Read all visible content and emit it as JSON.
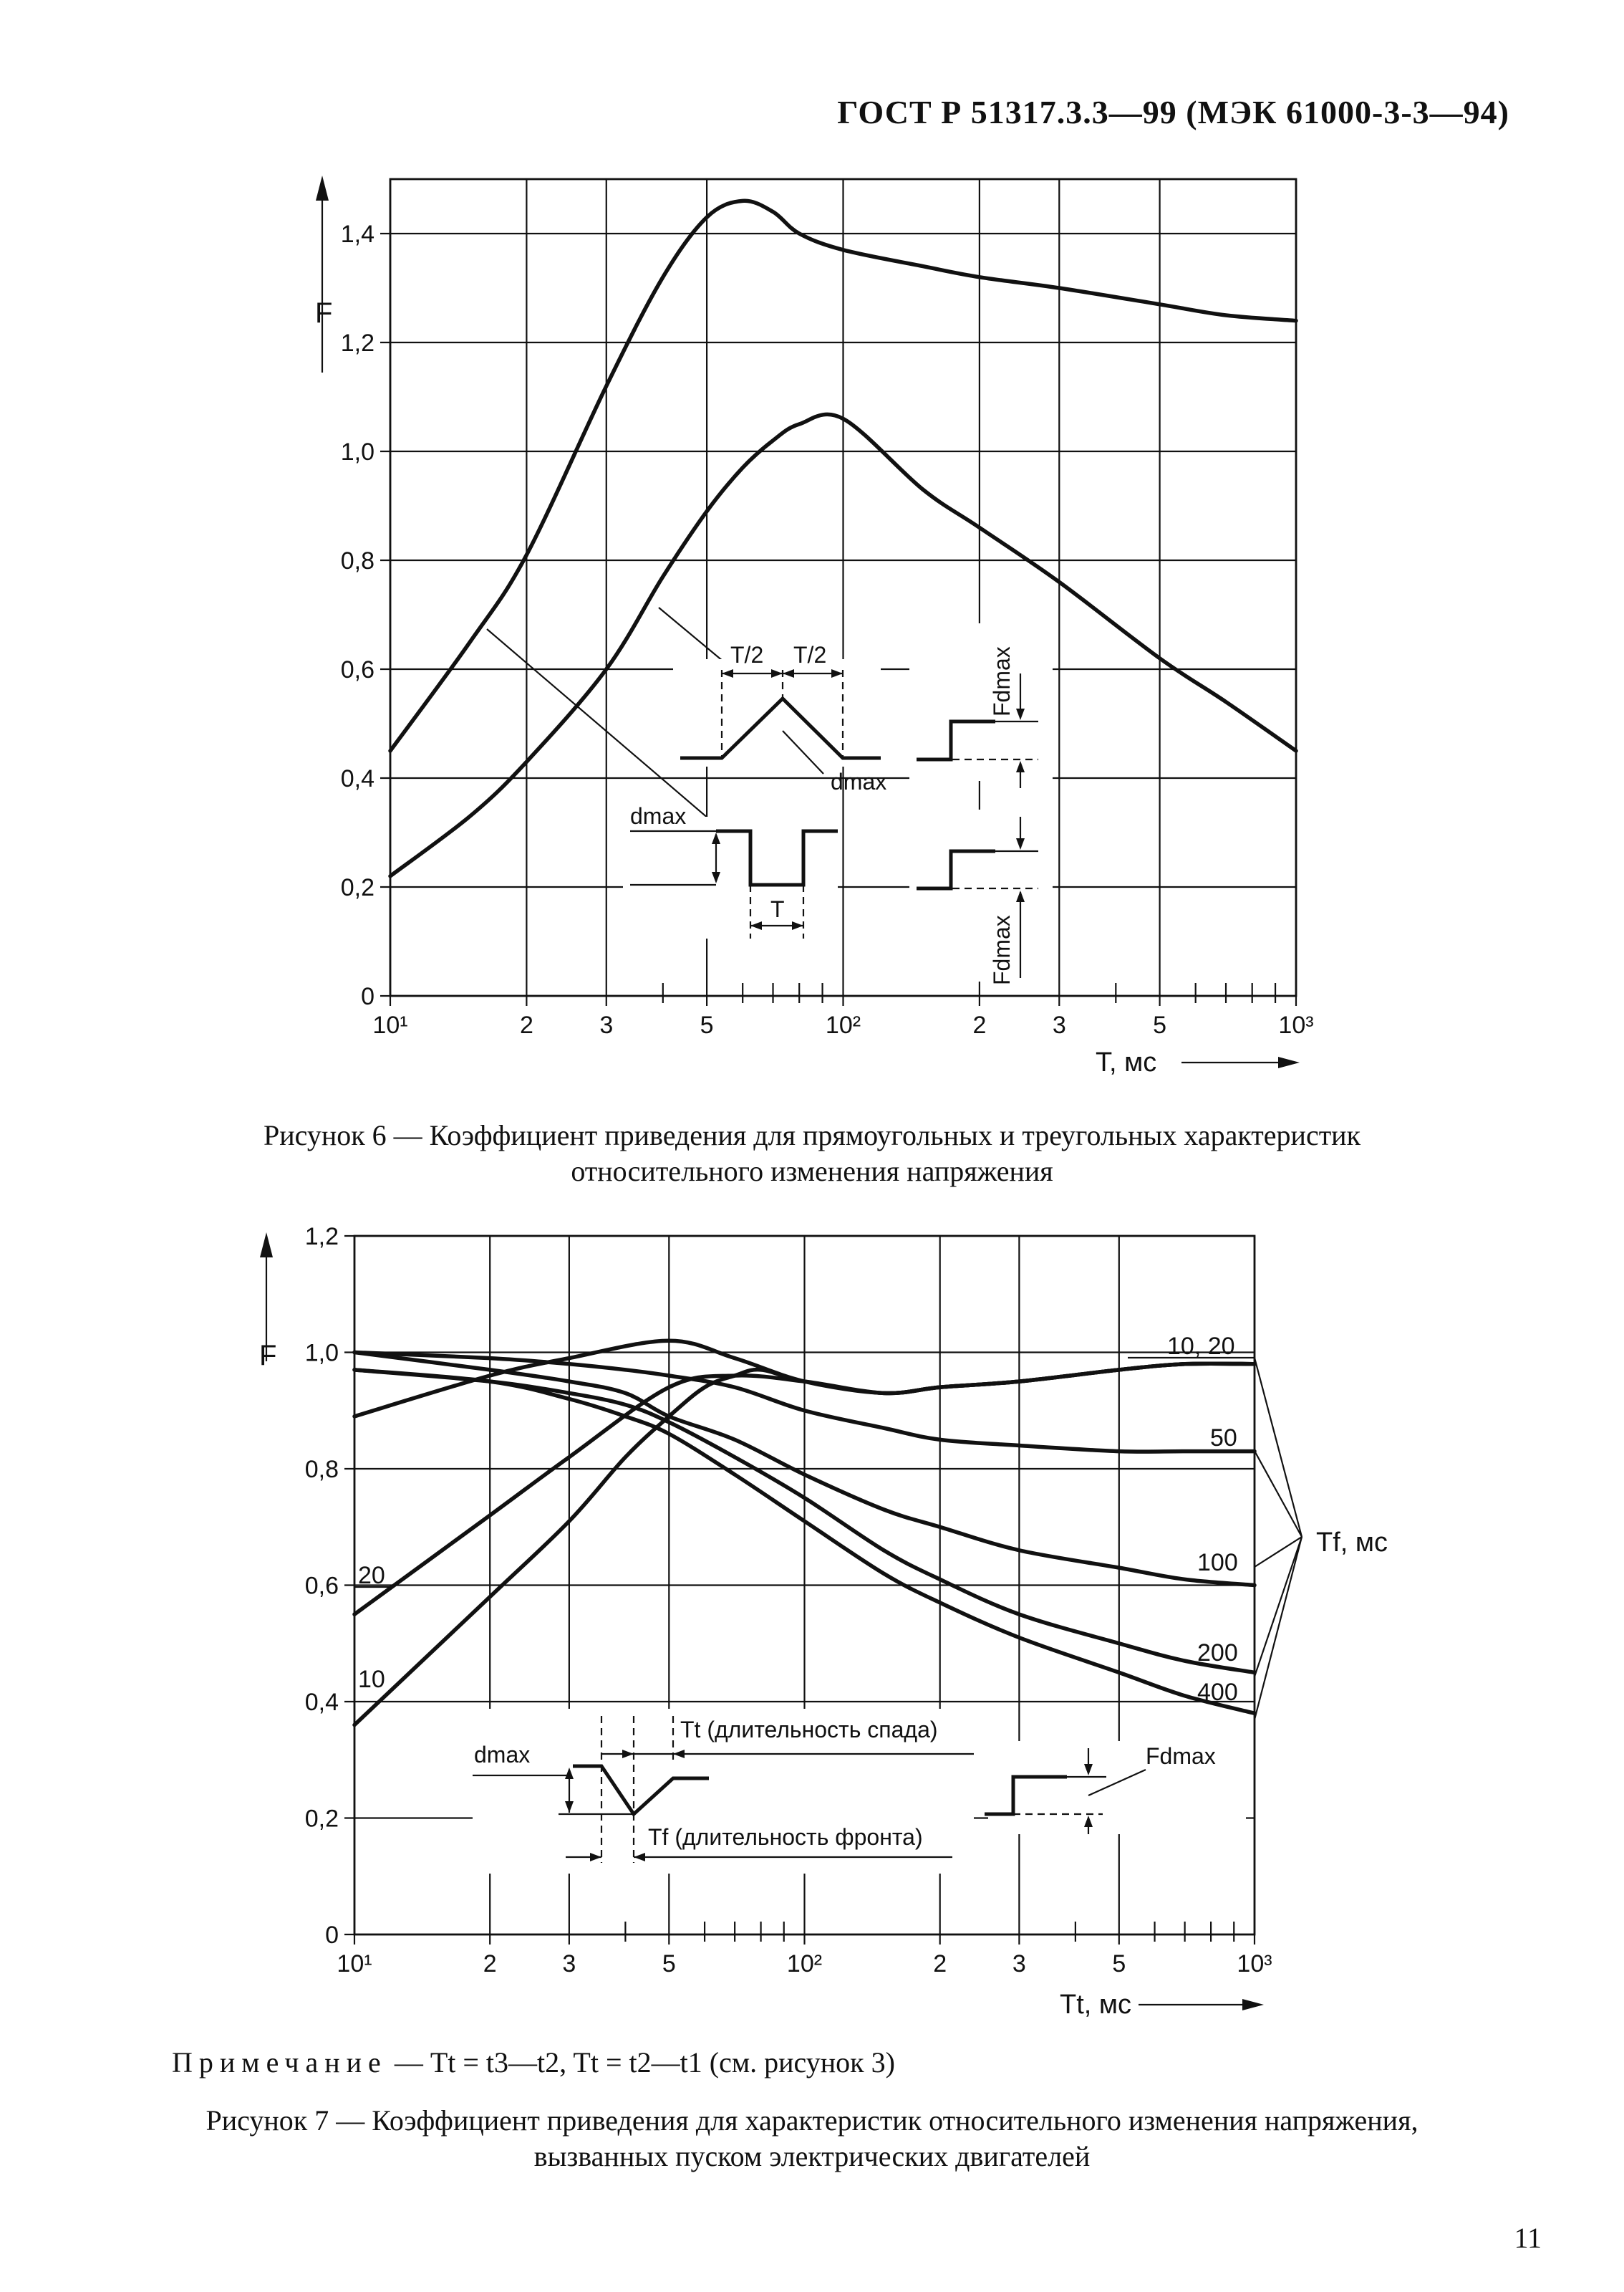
{
  "page": {
    "header": "ГОСТ Р 51317.3.3—99 (МЭК 61000-3-3—94)",
    "page_number": "11",
    "note_label": "Примечание",
    "note_text": " — Tt = t3—t2, Tt = t2—t1 (см. рисунок 3)"
  },
  "figure6": {
    "caption_line1": "Рисунок 6 — Коэффициент приведения для прямоугольных и треугольных характеристик",
    "caption_line2": "относительного изменения напряжения",
    "y_label": "F",
    "x_label": "T, мс",
    "y_ticks": [
      "0",
      "0,2",
      "0,4",
      "0,6",
      "0,8",
      "1,0",
      "1,2",
      "1,4"
    ],
    "x_ticks": [
      "10¹",
      "2",
      "3",
      "5",
      "10²",
      "2",
      "3",
      "5",
      "10³"
    ],
    "insets": {
      "half_period": "T/2",
      "period": "T",
      "dmax": "dmax",
      "fdmax": "Fdmax"
    }
  },
  "figure7": {
    "caption_line1": "Рисунок 7 — Коэффициент приведения для характеристик относительного изменения напряжения,",
    "caption_line2": "вызванных пуском электрических двигателей",
    "y_label": "F",
    "x_label": "Tt, мс",
    "y_ticks": [
      "0",
      "0,2",
      "0,4",
      "0,6",
      "0,8",
      "1,0",
      "1,2"
    ],
    "x_ticks": [
      "10¹",
      "2",
      "3",
      "5",
      "10²",
      "2",
      "3",
      "5",
      "10³"
    ],
    "tf_label": "Tf, мс",
    "curve_labels": [
      "10, 20",
      "50",
      "100",
      "200",
      "400",
      "20",
      "10"
    ],
    "insets": {
      "fall_label": "Tt (длительность спада)",
      "front_label": "Tf (длительность фронта)",
      "dmax": "dmax",
      "fdmax": "Fdmax"
    }
  },
  "chart_data": [
    {
      "type": "line",
      "x_scale": "log",
      "xlim": [
        10,
        1000
      ],
      "ylim": [
        0,
        1.5
      ],
      "xlabel": "T, мс",
      "ylabel": "F",
      "series": [
        {
          "x": [
            10,
            15,
            20,
            30,
            40,
            50,
            60,
            70,
            80,
            100,
            150,
            200,
            300,
            500,
            700,
            1000
          ],
          "y": [
            0.45,
            0.65,
            0.81,
            1.12,
            1.32,
            1.43,
            1.46,
            1.44,
            1.4,
            1.37,
            1.34,
            1.32,
            1.3,
            1.27,
            1.25,
            1.24
          ]
        },
        {
          "x": [
            10,
            15,
            20,
            30,
            40,
            50,
            60,
            70,
            80,
            100,
            150,
            200,
            300,
            500,
            700,
            1000
          ],
          "y": [
            0.22,
            0.33,
            0.43,
            0.6,
            0.77,
            0.89,
            0.97,
            1.02,
            1.05,
            1.06,
            0.93,
            0.86,
            0.76,
            0.62,
            0.54,
            0.45
          ]
        }
      ]
    },
    {
      "type": "line",
      "x_scale": "log",
      "xlim": [
        10,
        1000
      ],
      "ylim": [
        0,
        1.2
      ],
      "xlabel": "Tt, мс",
      "ylabel": "F",
      "series": [
        {
          "name": "10, 20",
          "x": [
            10,
            20,
            30,
            50,
            70,
            100,
            150,
            200,
            300,
            500,
            700,
            1000
          ],
          "y": [
            0.89,
            0.96,
            0.99,
            1.02,
            0.99,
            0.95,
            0.93,
            0.94,
            0.95,
            0.97,
            0.98,
            0.98
          ]
        },
        {
          "name": "50",
          "x": [
            10,
            20,
            30,
            40,
            50,
            70,
            100,
            150,
            200,
            300,
            500,
            700,
            1000
          ],
          "y": [
            1.0,
            0.99,
            0.98,
            0.97,
            0.96,
            0.94,
            0.9,
            0.87,
            0.85,
            0.84,
            0.83,
            0.83,
            0.83
          ]
        },
        {
          "name": "100",
          "x": [
            10,
            20,
            30,
            40,
            50,
            70,
            100,
            150,
            200,
            300,
            500,
            700,
            1000
          ],
          "y": [
            1.0,
            0.97,
            0.95,
            0.93,
            0.89,
            0.85,
            0.79,
            0.73,
            0.7,
            0.66,
            0.63,
            0.61,
            0.6
          ]
        },
        {
          "name": "200",
          "x": [
            10,
            20,
            30,
            40,
            50,
            70,
            100,
            150,
            200,
            300,
            500,
            700,
            1000
          ],
          "y": [
            0.97,
            0.95,
            0.93,
            0.91,
            0.88,
            0.82,
            0.75,
            0.66,
            0.61,
            0.55,
            0.5,
            0.47,
            0.45
          ]
        },
        {
          "name": "400",
          "x": [
            10,
            20,
            30,
            40,
            50,
            70,
            100,
            150,
            200,
            300,
            500,
            700,
            1000
          ],
          "y": [
            0.97,
            0.95,
            0.92,
            0.89,
            0.86,
            0.79,
            0.71,
            0.62,
            0.57,
            0.51,
            0.45,
            0.41,
            0.38
          ]
        },
        {
          "name": "20",
          "x": [
            10,
            20,
            30,
            50,
            70,
            100,
            150,
            200,
            300,
            500,
            700,
            1000
          ],
          "y": [
            0.55,
            0.72,
            0.82,
            0.94,
            0.96,
            0.95,
            0.93,
            0.94,
            0.95,
            0.97,
            0.98,
            0.98
          ]
        },
        {
          "name": "10",
          "x": [
            10,
            20,
            30,
            40,
            50,
            60,
            70,
            80,
            100,
            150,
            200,
            300,
            500,
            700,
            1000
          ],
          "y": [
            0.36,
            0.58,
            0.71,
            0.82,
            0.89,
            0.94,
            0.96,
            0.97,
            0.95,
            0.93,
            0.94,
            0.95,
            0.97,
            0.98,
            0.98
          ]
        }
      ]
    }
  ]
}
